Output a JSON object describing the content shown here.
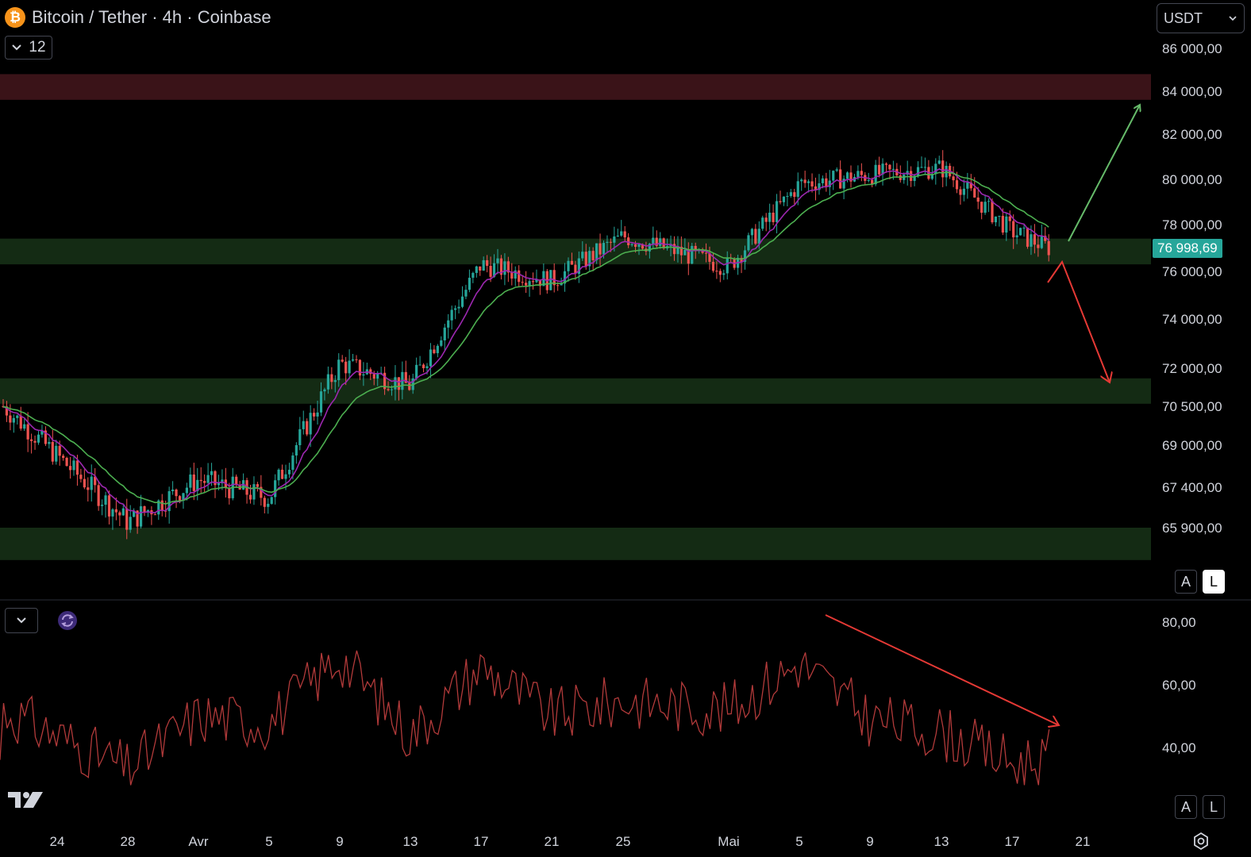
{
  "header": {
    "title": "Bitcoin / Tether · 4h · Coinbase",
    "collapse_count": "12",
    "currency": "USDT"
  },
  "colors": {
    "background": "#000000",
    "up_candle": "#26a69a",
    "down_candle": "#ef5350",
    "support_zone": "#142b14",
    "resistance_zone": "#3a1318",
    "ma_fast": "#9c27b0",
    "ma_slow": "#4caf50",
    "rsi_line": "#b23a3a",
    "arrow_up": "#66bb6a",
    "arrow_down": "#e53935"
  },
  "scale_buttons": {
    "auto": "A",
    "log": "L"
  },
  "chart_data": [
    {
      "type": "candlestick",
      "title": "Bitcoin / Tether · 4h · Coinbase",
      "current_price": "76 998,69",
      "ylim": [
        64500,
        87000
      ],
      "y_ticks": [
        "86 000,00",
        "84 000,00",
        "82 000,00",
        "80 000,00",
        "78 000,00",
        "76 000,00",
        "74 000,00",
        "72 000,00",
        "70 500,00",
        "69 000,00",
        "67 400,00",
        "65 900,00"
      ],
      "x_ticks": [
        "24",
        "28",
        "Avr",
        "5",
        "9",
        "13",
        "17",
        "21",
        "25",
        "Mai",
        "5",
        "9",
        "13",
        "17",
        "21"
      ],
      "zones": [
        {
          "kind": "resistance",
          "from": 83600,
          "to": 84800
        },
        {
          "kind": "support",
          "from": 76300,
          "to": 77400
        },
        {
          "kind": "support",
          "from": 70600,
          "to": 71600
        },
        {
          "kind": "support",
          "from": 64700,
          "to": 65900
        }
      ],
      "key_closes": [
        {
          "x": "24",
          "y": 70500
        },
        {
          "x": "28",
          "y": 66100
        },
        {
          "x": "Avr",
          "y": 67700
        },
        {
          "x": "5",
          "y": 67000
        },
        {
          "x": "9",
          "y": 72200
        },
        {
          "x": "13",
          "y": 71300
        },
        {
          "x": "17",
          "y": 76300
        },
        {
          "x": "21",
          "y": 75600
        },
        {
          "x": "25",
          "y": 77500
        },
        {
          "x": "Mai",
          "y": 76200
        },
        {
          "x": "5",
          "y": 79800
        },
        {
          "x": "9",
          "y": 80200
        },
        {
          "x": "13",
          "y": 80500
        },
        {
          "x": "17",
          "y": 77700
        },
        {
          "x": "19",
          "y": 77000
        }
      ],
      "moving_averages": [
        "fast (purple)",
        "slow (green)"
      ],
      "annotations": [
        "arrow up toward 84 000",
        "arrow down toward 71 000"
      ]
    },
    {
      "type": "line",
      "ylim": [
        25,
        85
      ],
      "y_ticks": [
        "80,00",
        "60,00",
        "40,00"
      ],
      "key_values": [
        {
          "x": "24",
          "y": 52
        },
        {
          "x": "28",
          "y": 33
        },
        {
          "x": "Avr",
          "y": 50
        },
        {
          "x": "5",
          "y": 48
        },
        {
          "x": "9",
          "y": 69
        },
        {
          "x": "13",
          "y": 44
        },
        {
          "x": "17",
          "y": 66
        },
        {
          "x": "21",
          "y": 50
        },
        {
          "x": "25",
          "y": 55
        },
        {
          "x": "Mai",
          "y": 52
        },
        {
          "x": "5",
          "y": 67
        },
        {
          "x": "9",
          "y": 49
        },
        {
          "x": "13",
          "y": 45
        },
        {
          "x": "17",
          "y": 35
        },
        {
          "x": "19",
          "y": 37
        }
      ],
      "annotations": [
        "downward trendline"
      ]
    }
  ]
}
